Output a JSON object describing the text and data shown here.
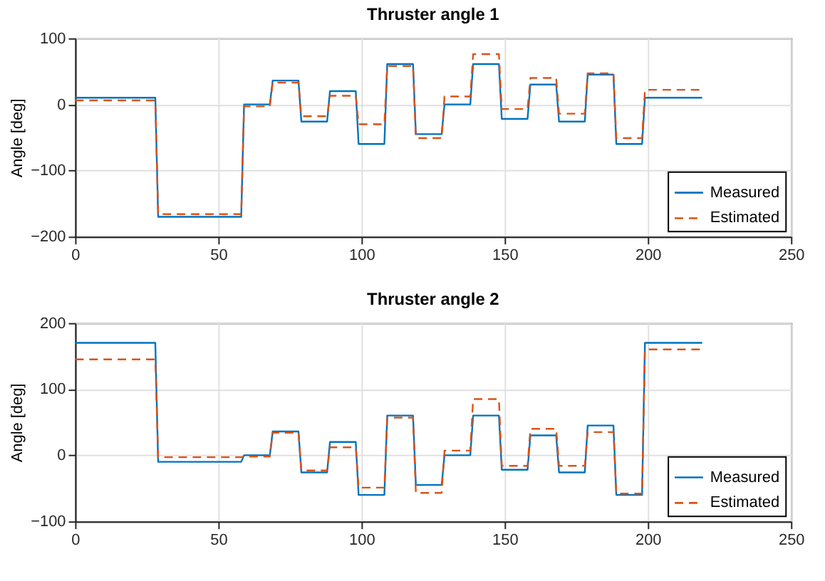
{
  "chart_data": [
    {
      "type": "line",
      "title": "Thruster angle 1",
      "ylabel": "Angle [deg]",
      "xlim": [
        0,
        250
      ],
      "xticks": [
        0,
        50,
        100,
        150,
        200,
        250
      ],
      "ylim": [
        -200,
        100
      ],
      "yticks": [
        -200,
        -100,
        0,
        100
      ],
      "grid": true,
      "legend": "bottom right",
      "marker": "none",
      "x": [
        0,
        28,
        29,
        58,
        59,
        68,
        69,
        78,
        79,
        88,
        89,
        98,
        99,
        108,
        109,
        118,
        119,
        128,
        129,
        138,
        139,
        148,
        149,
        158,
        159,
        168,
        169,
        178,
        179,
        188,
        189,
        198,
        199,
        219
      ],
      "series": [
        {
          "name": "Measured",
          "color": "#0072bd",
          "line_style": "solid",
          "values": [
            10,
            10,
            -170,
            -170,
            0,
            0,
            36,
            36,
            -26,
            -26,
            20,
            20,
            -60,
            -60,
            61,
            61,
            -45,
            -45,
            0,
            0,
            61,
            61,
            -22,
            -22,
            30,
            30,
            -26,
            -26,
            45,
            45,
            -60,
            -60,
            10,
            10
          ]
        },
        {
          "name": "Estimated",
          "color": "#d95319",
          "line_style": "dashed",
          "values": [
            6,
            6,
            -166,
            -166,
            -3,
            -3,
            33,
            33,
            -18,
            -18,
            13,
            13,
            -30,
            -30,
            58,
            58,
            -51,
            -51,
            12,
            12,
            76,
            76,
            -7,
            -7,
            40,
            40,
            -14,
            -14,
            47,
            47,
            -51,
            -51,
            22,
            22
          ]
        }
      ]
    },
    {
      "type": "line",
      "title": "Thruster angle 2",
      "ylabel": "Angle [deg]",
      "xlim": [
        0,
        250
      ],
      "xticks": [
        0,
        50,
        100,
        150,
        200,
        250
      ],
      "ylim": [
        -100,
        200
      ],
      "yticks": [
        -100,
        0,
        100,
        200
      ],
      "grid": true,
      "legend": "bottom right",
      "marker": "none",
      "x": [
        0,
        28,
        29,
        58,
        59,
        68,
        69,
        78,
        79,
        88,
        89,
        98,
        99,
        108,
        109,
        118,
        119,
        128,
        129,
        138,
        139,
        148,
        149,
        158,
        159,
        168,
        169,
        178,
        179,
        188,
        189,
        198,
        199,
        219
      ],
      "series": [
        {
          "name": "Measured",
          "color": "#0072bd",
          "line_style": "solid",
          "values": [
            170,
            170,
            -10,
            -10,
            0,
            0,
            36,
            36,
            -26,
            -26,
            20,
            20,
            -60,
            -60,
            60,
            60,
            -45,
            -45,
            0,
            0,
            60,
            60,
            -22,
            -22,
            30,
            30,
            -26,
            -26,
            45,
            45,
            -60,
            -60,
            170,
            170
          ]
        },
        {
          "name": "Estimated",
          "color": "#d95319",
          "line_style": "dashed",
          "values": [
            145,
            145,
            -3,
            -3,
            -2,
            -2,
            34,
            34,
            -23,
            -23,
            12,
            12,
            -49,
            -49,
            57,
            57,
            -57,
            -57,
            7,
            7,
            85,
            85,
            -16,
            -16,
            40,
            40,
            -16,
            -16,
            35,
            35,
            -58,
            -58,
            160,
            160
          ]
        }
      ]
    }
  ]
}
